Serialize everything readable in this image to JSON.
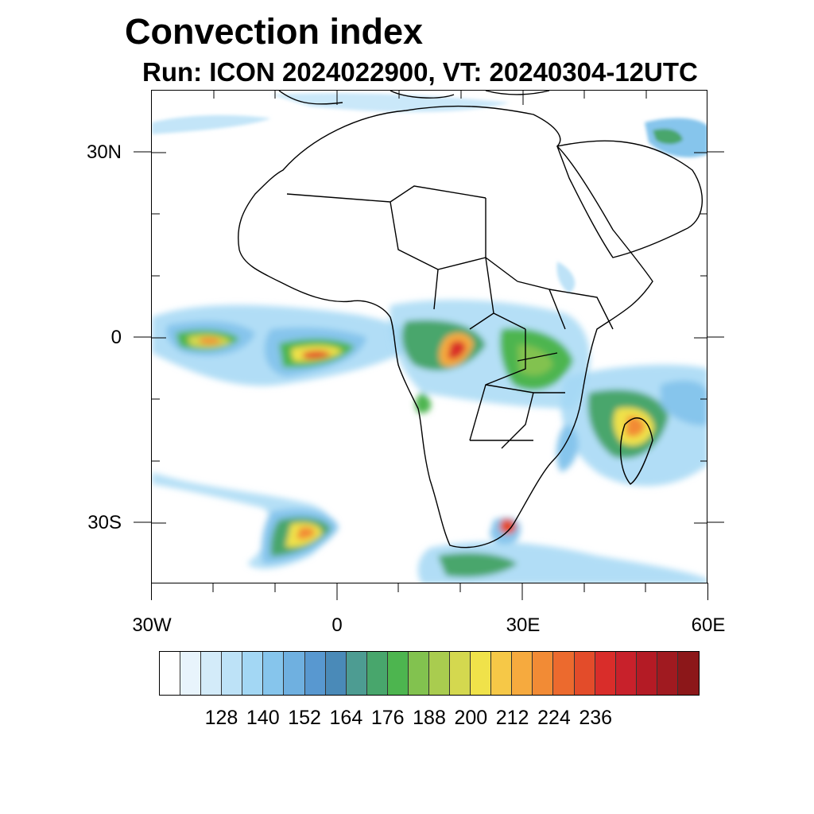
{
  "title": "Convection index",
  "subtitle": "Run: ICON 2024022900,  VT: 20240304-12UTC",
  "map": {
    "projection": "lat-lon",
    "lon_range": [
      -30,
      60
    ],
    "lat_range": [
      -40,
      40
    ],
    "lat_ticks": [
      {
        "label": "30N",
        "value": 30
      },
      {
        "label": "0",
        "value": 0
      },
      {
        "label": "30S",
        "value": -30
      }
    ],
    "lon_ticks": [
      {
        "label": "30W",
        "value": -30
      },
      {
        "label": "0",
        "value": 0
      },
      {
        "label": "30E",
        "value": 30
      },
      {
        "label": "60E",
        "value": 60
      }
    ]
  },
  "colorbar": {
    "colors": [
      "#ffffff",
      "#e8f4fc",
      "#d3ebf9",
      "#bde2f7",
      "#a3d7f4",
      "#86c5ec",
      "#6fb0e0",
      "#5898d0",
      "#4a8ab8",
      "#4d9c92",
      "#48a66c",
      "#4db54f",
      "#82c24f",
      "#a9cc4f",
      "#d4d84f",
      "#f0e24a",
      "#f6c847",
      "#f6aa3e",
      "#f28b35",
      "#ec6a2e",
      "#e34c2a",
      "#d92d2a",
      "#c8212b",
      "#b41b25",
      "#a01a20",
      "#8c1719"
    ],
    "labels": [
      "128",
      "140",
      "152",
      "164",
      "176",
      "188",
      "200",
      "212",
      "224",
      "236"
    ]
  }
}
